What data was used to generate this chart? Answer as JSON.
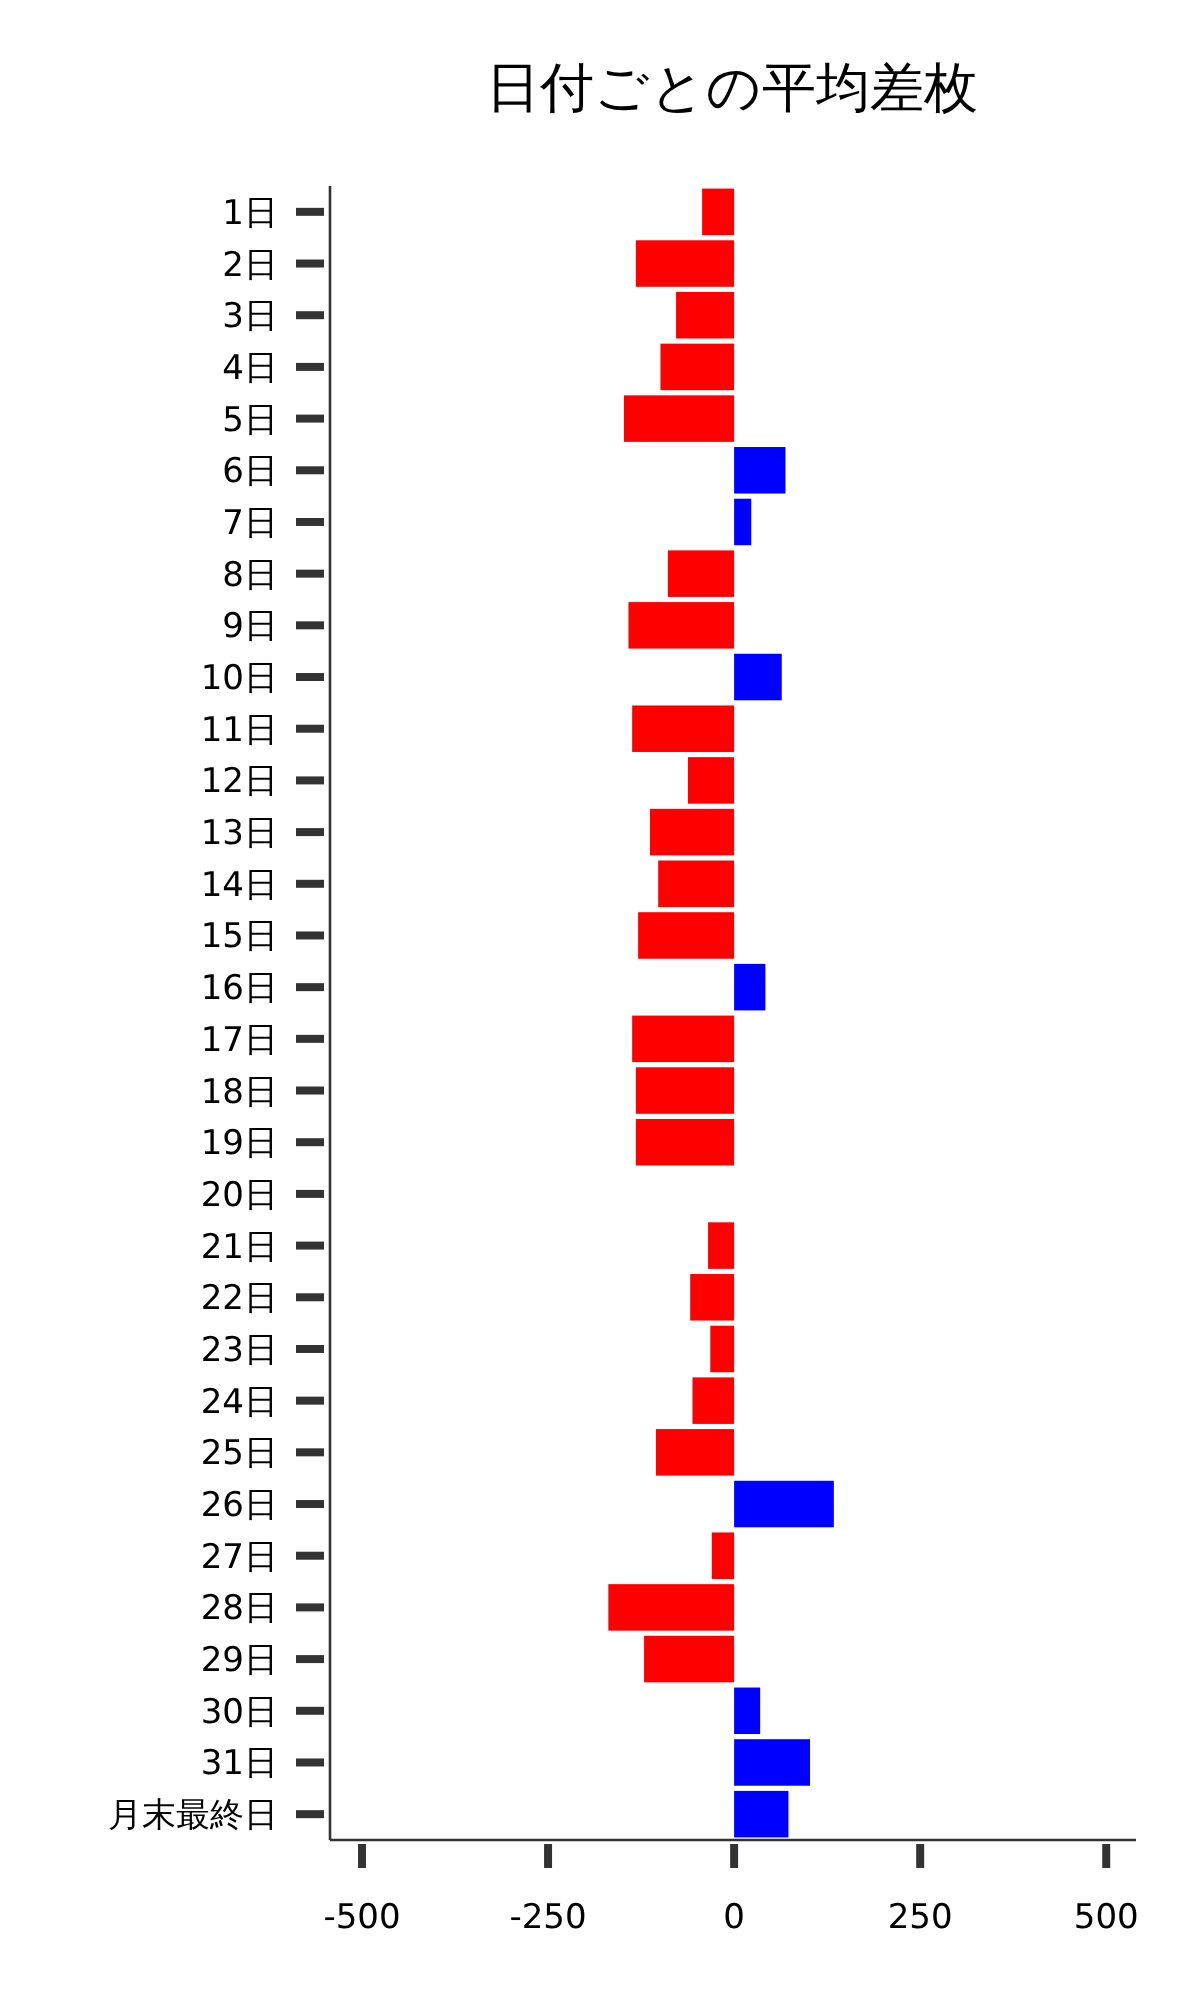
{
  "chart_data": {
    "type": "bar",
    "orientation": "horizontal",
    "title": "日付ごとの平均差枚",
    "categories": [
      "1日",
      "2日",
      "3日",
      "4日",
      "5日",
      "6日",
      "7日",
      "8日",
      "9日",
      "10日",
      "11日",
      "12日",
      "13日",
      "14日",
      "15日",
      "16日",
      "17日",
      "18日",
      "19日",
      "20日",
      "21日",
      "22日",
      "23日",
      "24日",
      "25日",
      "26日",
      "27日",
      "28日",
      "29日",
      "30日",
      "31日",
      "月末最終日"
    ],
    "values": [
      -43,
      -132,
      -78,
      -99,
      -148,
      69,
      23,
      -89,
      -142,
      64,
      -137,
      -62,
      -113,
      -102,
      -129,
      42,
      -137,
      -132,
      -132,
      0,
      -35,
      -59,
      -32,
      -56,
      -105,
      134,
      -30,
      -169,
      -121,
      35,
      102,
      73
    ],
    "colors": [
      "#ff0000",
      "#ff0000",
      "#ff0000",
      "#ff0000",
      "#ff0000",
      "#0000ff",
      "#0000ff",
      "#ff0000",
      "#ff0000",
      "#0000ff",
      "#ff0000",
      "#ff0000",
      "#ff0000",
      "#ff0000",
      "#ff0000",
      "#0000ff",
      "#ff0000",
      "#ff0000",
      "#ff0000",
      "#ff0000",
      "#ff0000",
      "#ff0000",
      "#ff0000",
      "#ff0000",
      "#ff0000",
      "#0000ff",
      "#ff0000",
      "#ff0000",
      "#ff0000",
      "#0000ff",
      "#0000ff",
      "#0000ff"
    ],
    "xlim": [
      -543,
      540
    ],
    "xticks": [
      -500,
      -250,
      0,
      250,
      500
    ]
  }
}
